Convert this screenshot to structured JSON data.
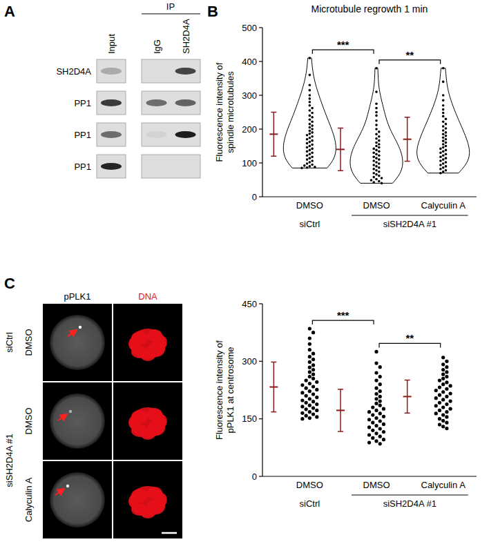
{
  "blot": {
    "panel_label": "A",
    "ip_label": "IP",
    "columns": [
      "Input",
      "IgG",
      "SH2D4A"
    ],
    "rows": [
      "SH2D4A",
      "PP1",
      "PP1",
      "PP1"
    ],
    "band_intensity": [
      [
        0.25,
        0,
        0.75
      ],
      [
        0.8,
        0.55,
        0.6
      ],
      [
        0.55,
        0.05,
        0.95
      ],
      [
        0.9,
        0,
        0
      ]
    ]
  },
  "micrographs": {
    "panel_label": "C",
    "channels": [
      "pPLK1",
      "DNA"
    ],
    "colors": [
      "#000000",
      "#e8101a"
    ],
    "groups": [
      {
        "label": "siCtrl",
        "rows": [
          "DMSO"
        ]
      },
      {
        "label": "siSH2D4A #1",
        "rows": [
          "DMSO",
          "Calyculin A"
        ]
      }
    ]
  },
  "chart_data": [
    {
      "type": "violin",
      "panel_label": "B",
      "title": "Microtubule regrowth 1 min",
      "y_label": "Fluorescence intensity of spindle microtubules",
      "categories": [
        "DMSO",
        "DMSO",
        "Calyculin A"
      ],
      "groups": [
        {
          "label": "siCtrl",
          "span": [
            0,
            0
          ]
        },
        {
          "label": "siSH2D4A #1",
          "span": [
            1,
            2
          ]
        }
      ],
      "color": "#000000",
      "ylim": [
        0,
        500
      ],
      "yticks": [
        0,
        100,
        200,
        300,
        400,
        500
      ],
      "points": [
        [
          410,
          360,
          330,
          315,
          300,
          290,
          280,
          270,
          262,
          255,
          248,
          240,
          235,
          228,
          222,
          215,
          210,
          205,
          200,
          195,
          190,
          186,
          182,
          178,
          174,
          170,
          166,
          162,
          158,
          154,
          150,
          146,
          142,
          138,
          134,
          130,
          126,
          122,
          118,
          114,
          110,
          106,
          102,
          98,
          95,
          92,
          90,
          88,
          86,
          85
        ],
        [
          380,
          310,
          275,
          262,
          250,
          240,
          225,
          212,
          200,
          192,
          185,
          178,
          172,
          166,
          160,
          155,
          150,
          146,
          142,
          138,
          134,
          130,
          126,
          122,
          118,
          114,
          110,
          106,
          102,
          98,
          94,
          90,
          86,
          82,
          78,
          74,
          70,
          66,
          62,
          58,
          55,
          52,
          49,
          46,
          43,
          40
        ],
        [
          380,
          340,
          300,
          285,
          270,
          258,
          248,
          238,
          230,
          222,
          215,
          208,
          202,
          196,
          190,
          185,
          180,
          175,
          170,
          165,
          160,
          155,
          150,
          146,
          142,
          138,
          134,
          130,
          126,
          122,
          118,
          114,
          110,
          106,
          102,
          98,
          94,
          90,
          86,
          82,
          78,
          74,
          70
        ]
      ],
      "mean": [
        185,
        140,
        170
      ],
      "sd": [
        65,
        63,
        65
      ],
      "annotations": [
        {
          "text": "***",
          "between": [
            0,
            1
          ]
        },
        {
          "text": "**",
          "between": [
            1,
            2
          ]
        }
      ]
    },
    {
      "type": "dot",
      "y_label": "Fluorescence intensity of pPLK1 at centrosome",
      "categories": [
        "DMSO",
        "DMSO",
        "Calyculin A"
      ],
      "groups": [
        {
          "label": "siCtrl",
          "span": [
            0,
            0
          ]
        },
        {
          "label": "siSH2D4A #1",
          "span": [
            1,
            2
          ]
        }
      ],
      "color": "#000000",
      "ylim": [
        0,
        450
      ],
      "yticks": [
        0,
        150,
        300,
        450
      ],
      "points": [
        [
          385,
          375,
          360,
          345,
          330,
          320,
          312,
          305,
          298,
          290,
          284,
          278,
          272,
          266,
          260,
          255,
          250,
          246,
          242,
          238,
          234,
          230,
          226,
          222,
          218,
          214,
          210,
          206,
          202,
          198,
          195,
          192,
          188,
          185,
          182,
          178,
          175,
          172,
          168,
          165,
          162,
          158,
          155,
          152,
          150
        ],
        [
          325,
          295,
          285,
          270,
          260,
          250,
          240,
          230,
          222,
          215,
          208,
          202,
          196,
          190,
          185,
          180,
          176,
          172,
          168,
          164,
          160,
          156,
          152,
          148,
          144,
          140,
          136,
          132,
          128,
          124,
          120,
          116,
          112,
          108,
          104,
          100,
          96,
          92,
          88,
          85
        ],
        [
          310,
          300,
          292,
          285,
          278,
          272,
          266,
          260,
          255,
          250,
          245,
          240,
          236,
          232,
          228,
          224,
          220,
          216,
          212,
          208,
          204,
          200,
          196,
          192,
          188,
          184,
          180,
          176,
          172,
          168,
          164,
          160,
          155,
          150,
          145,
          140,
          135,
          130,
          125
        ]
      ],
      "mean": [
        233,
        172,
        208
      ],
      "sd": [
        65,
        55,
        43
      ],
      "annotations": [
        {
          "text": "***",
          "between": [
            0,
            1
          ]
        },
        {
          "text": "**",
          "between": [
            1,
            2
          ]
        }
      ]
    }
  ]
}
